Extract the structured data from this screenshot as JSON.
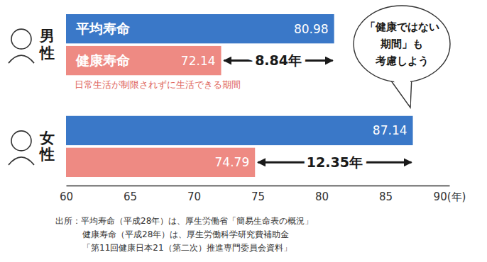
{
  "chart_data": {
    "type": "bar",
    "orientation": "horizontal",
    "categories": [
      "男性",
      "女性"
    ],
    "series": [
      {
        "name": "平均寿命",
        "color": "#3a78c8",
        "values": [
          80.98,
          87.14
        ]
      },
      {
        "name": "健康寿命",
        "color": "#ee8a83",
        "values": [
          72.14,
          74.79
        ]
      }
    ],
    "data_labels": true,
    "grid": false,
    "xlim": [
      60,
      90
    ],
    "xticks": [
      60,
      65,
      70,
      75,
      80,
      85,
      {
        "value": 90,
        "label": "90(年)"
      }
    ],
    "gaps": [
      8.84,
      12.35
    ],
    "gap_labels": [
      "8.84年",
      "12.35年"
    ],
    "annotation": "日常生活が制限されずに生活できる期間",
    "callout": [
      "「健康ではない",
      "期間」も",
      "考慮しよう"
    ],
    "source": [
      "出所：平均寿命（平成28年）は、厚生労働省「簡易生命表の概況」",
      "健康寿命（平成28年）は、厚生労働科学研究費補助金",
      "「第11回健康日本21（第二次）推進専門委員会資料」"
    ]
  }
}
